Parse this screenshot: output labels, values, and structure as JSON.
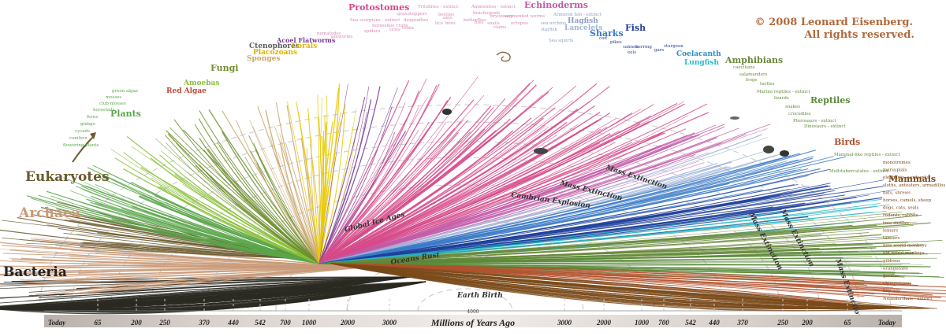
{
  "copyright": [
    "© 2008 Leonard Eisenberg.",
    "All rights reserved."
  ],
  "colors": {
    "bacteria": "#2a2a22",
    "archaea": "#c99a78",
    "eukaryotes": "#6b5a2e",
    "plants": "#5aa64a",
    "fungi": "#6f8f2e",
    "amoebas": "#8abf3a",
    "red_algae": "#c2483a",
    "sponges": "#c9a66b",
    "corals": "#e8c800",
    "acoel": "#7a3c9a",
    "protostomes": "#d64a8a",
    "echinoderms": "#c25aa8",
    "sharks": "#3a7ac8",
    "fish": "#1f3f9a",
    "coelacanth": "#2a8ac8",
    "lungfish": "#2ab8c8",
    "amphibians": "#6a8a3a",
    "reptiles": "#5a8a3a",
    "birds": "#b0502a",
    "mammals": "#7a4a1a",
    "copyright": "#b06a3a"
  },
  "domains": [
    {
      "key": "bacteria",
      "label": "Bacteria"
    },
    {
      "key": "archaea",
      "label": "Archaea"
    },
    {
      "key": "eukaryotes",
      "label": "Eukaryotes"
    }
  ],
  "clade_labels": [
    {
      "key": "plants",
      "label": "Plants"
    },
    {
      "key": "red_algae",
      "label": "Red Algae"
    },
    {
      "key": "amoebas",
      "label": "Amoebas"
    },
    {
      "key": "fungi",
      "label": "Fungi"
    },
    {
      "key": "sponges",
      "label": "Sponges"
    },
    {
      "key": "placozoans",
      "label": "Placozoans"
    },
    {
      "key": "ctenophores",
      "label": "Ctenophores"
    },
    {
      "key": "acoel",
      "label": "Acoel Flatworms"
    },
    {
      "key": "corals",
      "label": "Corals"
    },
    {
      "key": "protostomes",
      "label": "Protostomes"
    },
    {
      "key": "echinoderms",
      "label": "Echinoderms"
    },
    {
      "key": "hagfish",
      "label": "Hagfish"
    },
    {
      "key": "lancelets",
      "label": "Lancelets"
    },
    {
      "key": "sharks",
      "label": "Sharks"
    },
    {
      "key": "fish",
      "label": "Fish"
    },
    {
      "key": "coelacanth",
      "label": "Coelacanth"
    },
    {
      "key": "lungfish",
      "label": "Lungfish"
    },
    {
      "key": "amphibians",
      "label": "Amphibians"
    },
    {
      "key": "reptiles",
      "label": "Reptiles"
    },
    {
      "key": "birds",
      "label": "Birds"
    },
    {
      "key": "mammals",
      "label": "Mammals"
    }
  ],
  "events": [
    "Earth Birth",
    "Oceans Rust",
    "Global Ice Ages",
    "Cambrian Explosion",
    "Mass Extinction",
    "Mass Extinction",
    "Mass Extinction",
    "Mass Extinction",
    "Mass Extinction"
  ],
  "mammal_leaves": [
    "monotremes",
    "marsupials",
    "elephants, aardvarks",
    "sloths, anteaters, armadillos",
    "bats, shrews",
    "horses, camels, sheep",
    "dogs, cats, seals",
    "rodents, rabbits",
    "tree shrews",
    "lemurs",
    "tarsiers",
    "new world monkeys",
    "old world monkeys",
    "gibbons",
    "orangutans",
    "gorillas",
    "chimpanzees",
    "humans",
    "Neanderthals - extinct"
  ],
  "reptile_leaves": [
    "turtles",
    "Marine reptiles - extinct",
    "lizards",
    "snakes",
    "crocodiles",
    "Pterosaurs - extinct",
    "Dinosaurs - extinct",
    "Mammal-like reptiles - extinct",
    "Multituberculates - extinct"
  ],
  "amphibian_leaves": [
    "caecilians",
    "salamanders",
    "frogs"
  ],
  "fish_leaves": [
    "cod",
    "pikes",
    "salmon",
    "herring",
    "eels",
    "gars",
    "sturgeon"
  ],
  "shark_leaves": [
    "Armored fish - extinct",
    "sea urchins",
    "starfish",
    "Sea squirts"
  ],
  "protostome_leaves": [
    "Trilobites - extinct",
    "grasshoppers",
    "beetles",
    "ants",
    "bees",
    "butterflies",
    "flies",
    "dragonflies",
    "lice",
    "Ammonites - extinct",
    "brachiopods",
    "bryozoans",
    "snails",
    "clams",
    "octopus",
    "segmented worms",
    "Sea scorpions - extinct",
    "horseshoe crabs",
    "spiders",
    "ticks",
    "crabs",
    "nematodes",
    "pinworms"
  ],
  "plant_leaves": [
    "flowering plants",
    "conifers",
    "cycads",
    "ginkgo",
    "ferns",
    "horsetails",
    "club mosses",
    "mosses",
    "green algae"
  ],
  "timeline": {
    "left": [
      "Today",
      "65",
      "200",
      "250",
      "370",
      "440",
      "542",
      "700",
      "1000",
      "2000",
      "3000"
    ],
    "center": "Millions of Years Ago",
    "right": [
      "3000",
      "2000",
      "1000",
      "700",
      "542",
      "440",
      "370",
      "250",
      "200",
      "65",
      "Today"
    ],
    "apex": "4000"
  }
}
